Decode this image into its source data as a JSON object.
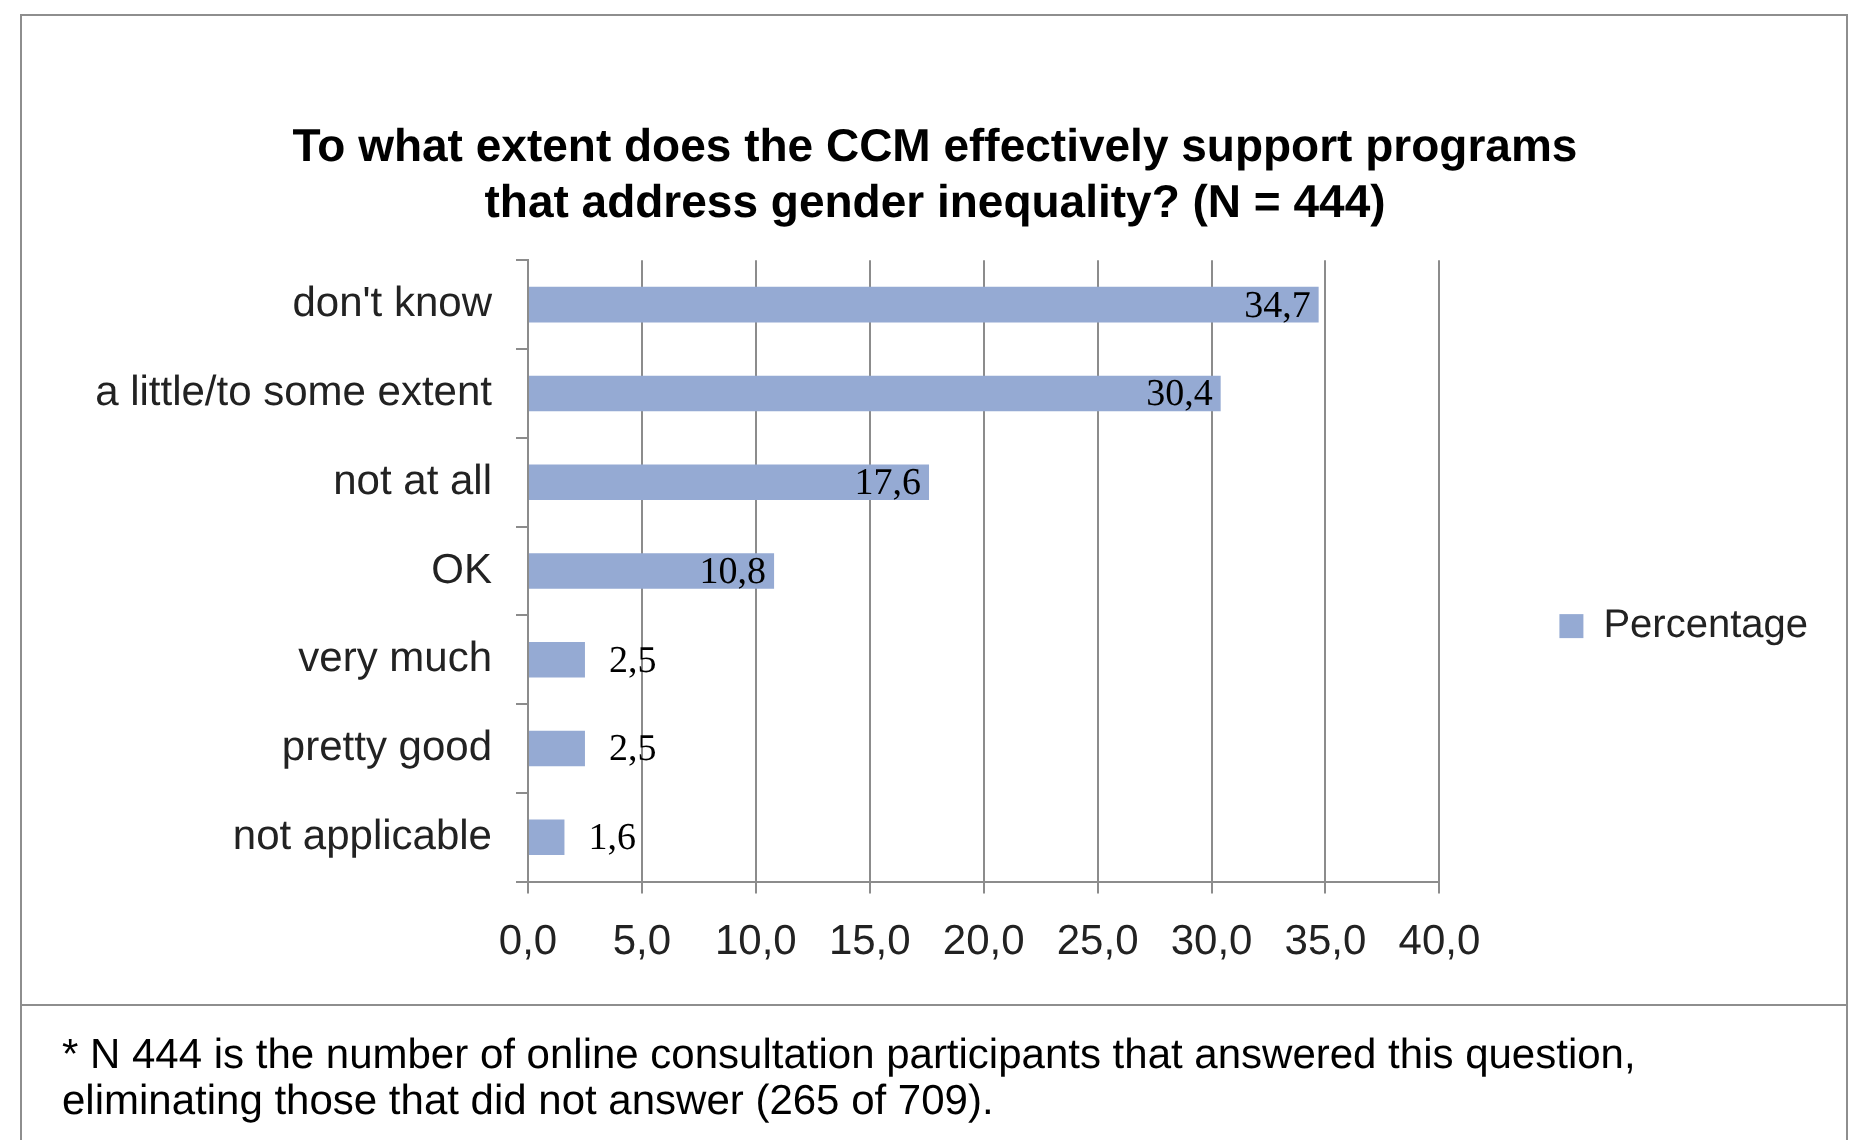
{
  "chart_data": {
    "type": "bar",
    "orientation": "horizontal",
    "title": "To what extent does the CCM effectively support programs that address gender inequality? (N = 444)",
    "categories": [
      "don't know",
      "a little/to some extent",
      "not at all",
      "OK",
      "very much",
      "pretty good",
      "not applicable"
    ],
    "series": [
      {
        "name": "Percentage",
        "color": "#95aad3",
        "values": [
          34.7,
          30.4,
          17.6,
          10.8,
          2.5,
          2.5,
          1.6
        ],
        "value_labels": [
          "34,7",
          "30,4",
          "17,6",
          "10,8",
          "2,5",
          "2,5",
          "1,6"
        ]
      }
    ],
    "xlim": [
      0,
      40
    ],
    "xticks": [
      {
        "value": 0,
        "label": "0,0"
      },
      {
        "value": 5,
        "label": "5,0"
      },
      {
        "value": 10,
        "label": "10,0"
      },
      {
        "value": 15,
        "label": "15,0"
      },
      {
        "value": 20,
        "label": "20,0"
      },
      {
        "value": 25,
        "label": "25,0"
      },
      {
        "value": 30,
        "label": "30,0"
      },
      {
        "value": 35,
        "label": "35,0"
      },
      {
        "value": 40,
        "label": "40,0"
      }
    ],
    "grid": "x",
    "legend": "right",
    "annotations": [
      "* N 444 is the number of online consultation participants that answered this question, eliminating those that did not answer (265 of 709)."
    ]
  }
}
